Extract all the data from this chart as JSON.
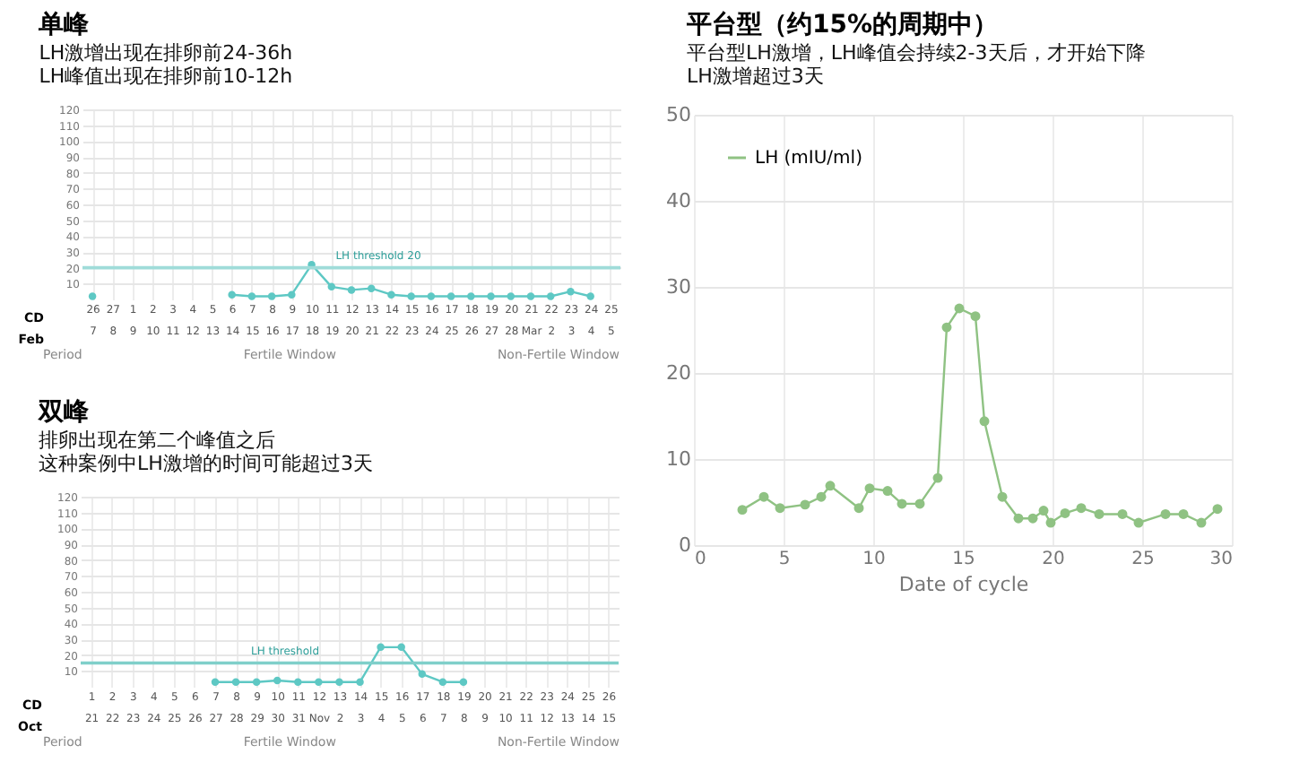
{
  "chart_data": [
    {
      "type": "line",
      "title": "单峰",
      "subtitle": [
        "LH激增出现在排卵前24-36h",
        "LH峰值出现在排卵前10-12h"
      ],
      "xlabel": "CD\nFeb",
      "categories": [
        "26\n7",
        "27\n8",
        "1\n9",
        "2\n10",
        "3\n11",
        "4\n12",
        "5\n13",
        "6\n14",
        "7\n15",
        "8\n16",
        "9\n17",
        "10\n18",
        "11\n19",
        "12\n20",
        "13\n21",
        "14\n22",
        "15\n23",
        "16\n24",
        "17\n25",
        "18\n26",
        "19\n27",
        "20\n28",
        "21\nMar",
        "22\n2",
        "23\n3",
        "24\n4",
        "25\n5"
      ],
      "series": [
        {
          "color": "#5ec8c4",
          "values": [
            2,
            null,
            null,
            null,
            null,
            null,
            null,
            3,
            2,
            2,
            3,
            22,
            8,
            6,
            7,
            3,
            2,
            2,
            2,
            2,
            2,
            2,
            2,
            2,
            5,
            2,
            null
          ]
        }
      ],
      "ylim": [
        0,
        120
      ],
      "yticks": [
        10,
        20,
        30,
        40,
        50,
        60,
        70,
        80,
        90,
        100,
        110,
        120
      ],
      "grid": true,
      "marker": "circle",
      "ref_lines": [
        {
          "axis": "y",
          "value": 20,
          "label": "LH threshold 20",
          "color": "#9fdcd9"
        }
      ],
      "annotations": [
        "Period",
        "Fertile Window",
        "Non-Fertile Window"
      ]
    },
    {
      "type": "line",
      "title": "双峰",
      "subtitle": [
        "排卵出现在第二个峰值之后",
        "这种案例中LH激增的时间可能超过3天"
      ],
      "xlabel": "CD\nOct",
      "categories": [
        "1\n21",
        "2\n22",
        "3\n23",
        "4\n24",
        "5\n25",
        "6\n26",
        "7\n27",
        "8\n28",
        "9\n29",
        "10\n30",
        "11\n31",
        "12\nNov",
        "13\n2",
        "14\n3",
        "15\n4",
        "16\n5",
        "17\n6",
        "18\n7",
        "19\n8",
        "20\n9",
        "21\n10",
        "22\n11",
        "23\n12",
        "24\n13",
        "25\n14",
        "26\n15"
      ],
      "series": [
        {
          "color": "#5ec8c4",
          "values": [
            null,
            null,
            null,
            null,
            null,
            null,
            3,
            3,
            3,
            4,
            3,
            3,
            3,
            3,
            25,
            25,
            8,
            3,
            3,
            null,
            null,
            null,
            null,
            null,
            null,
            null
          ]
        }
      ],
      "ylim": [
        0,
        120
      ],
      "yticks": [
        10,
        20,
        30,
        40,
        50,
        60,
        70,
        80,
        90,
        100,
        110,
        120
      ],
      "grid": true,
      "marker": "circle",
      "ref_lines": [
        {
          "axis": "y",
          "value": 15,
          "label": "LH threshold",
          "color": "#7fcfca"
        }
      ],
      "annotations": [
        "Period",
        "Fertile Window",
        "Non-Fertile Window"
      ]
    },
    {
      "type": "line",
      "title": "平台型（约15%的周期中）",
      "subtitle": [
        "平台型LH激增，LH峰值会持续2-3天后，才开始下降",
        "LH激增超过3天"
      ],
      "xlabel": "Date of cycle",
      "series": [
        {
          "name": "LH (mIU/ml)",
          "color": "#8fc283",
          "x": [
            2.7,
            3.9,
            4.8,
            6.2,
            7.1,
            7.6,
            9.2,
            9.8,
            10.8,
            11.6,
            12.6,
            13.6,
            14.1,
            14.8,
            15.7,
            16.2,
            17.2,
            18.1,
            18.9,
            19.5,
            19.9,
            20.7,
            21.6,
            22.6,
            23.9,
            24.8,
            26.3,
            27.3,
            28.3,
            29.2
          ],
          "values": [
            4.1,
            5.6,
            4.3,
            4.7,
            5.6,
            6.9,
            4.3,
            6.6,
            6.3,
            4.8,
            4.8,
            7.8,
            25.3,
            27.5,
            26.6,
            14.4,
            5.6,
            3.1,
            3.1,
            4.0,
            2.6,
            3.7,
            4.3,
            3.6,
            3.6,
            2.6,
            3.6,
            3.6,
            2.6,
            4.2
          ]
        }
      ],
      "xlim": [
        0,
        30
      ],
      "xticks": [
        0,
        5,
        10,
        15,
        20,
        25,
        30
      ],
      "ylim": [
        0,
        50
      ],
      "yticks": [
        0,
        10,
        20,
        30,
        40,
        50
      ],
      "grid": true,
      "marker": "circle",
      "legend": "top left"
    }
  ]
}
